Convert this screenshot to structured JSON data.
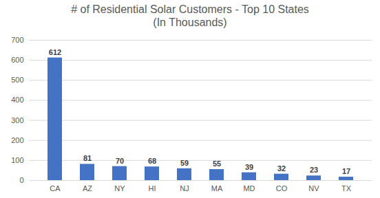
{
  "chart_data": {
    "type": "bar",
    "title": "# of Residential Solar Customers - Top 10 States",
    "subtitle": "(In Thousands)",
    "categories": [
      "CA",
      "AZ",
      "NY",
      "HI",
      "NJ",
      "MA",
      "MD",
      "CO",
      "NV",
      "TX"
    ],
    "values": [
      612,
      81,
      70,
      68,
      59,
      55,
      39,
      32,
      23,
      17
    ],
    "color": "#4472c4",
    "ylim": [
      0,
      700
    ],
    "yticks": [
      0,
      100,
      200,
      300,
      400,
      500,
      600,
      700
    ],
    "grid": true,
    "data_labels": true
  }
}
